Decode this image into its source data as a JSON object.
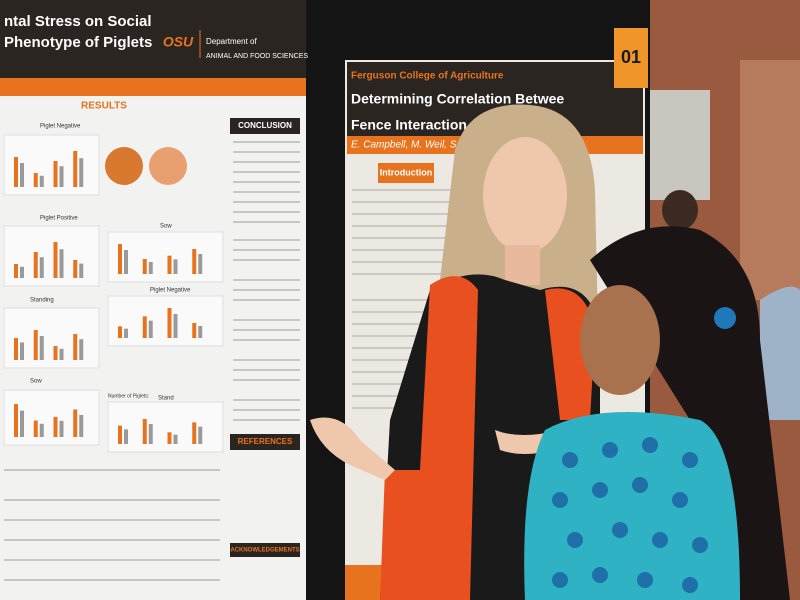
{
  "left_poster": {
    "title_lines": [
      "ntal Stress on Social",
      "Phenotype of Piglets"
    ],
    "logo": "OSU",
    "department_lines": [
      "Department of",
      "ANIMAL AND FOOD SCIENCES"
    ],
    "results_heading": "RESULTS",
    "conclusion_heading": "CONCLUSION",
    "references_heading": "REFERENCES",
    "acknowledgements_heading": "ACKNOWLEDGEMENTS",
    "panel_labels": [
      "Piglet Negative",
      "Piglet Positive",
      "Standing",
      "Sow",
      "Sow",
      "Piglet Negative",
      "Number of Piglets:",
      "Stand"
    ]
  },
  "right_poster": {
    "college": "Ferguson College of Agriculture",
    "title_lines": [
      "Determining Correlation Betwee",
      "Fence Interaction"
    ],
    "authors": "E. Campbell, M. Weil, S. Drayer, R. P",
    "introduction_heading": "Introduction"
  },
  "board_number": "01"
}
